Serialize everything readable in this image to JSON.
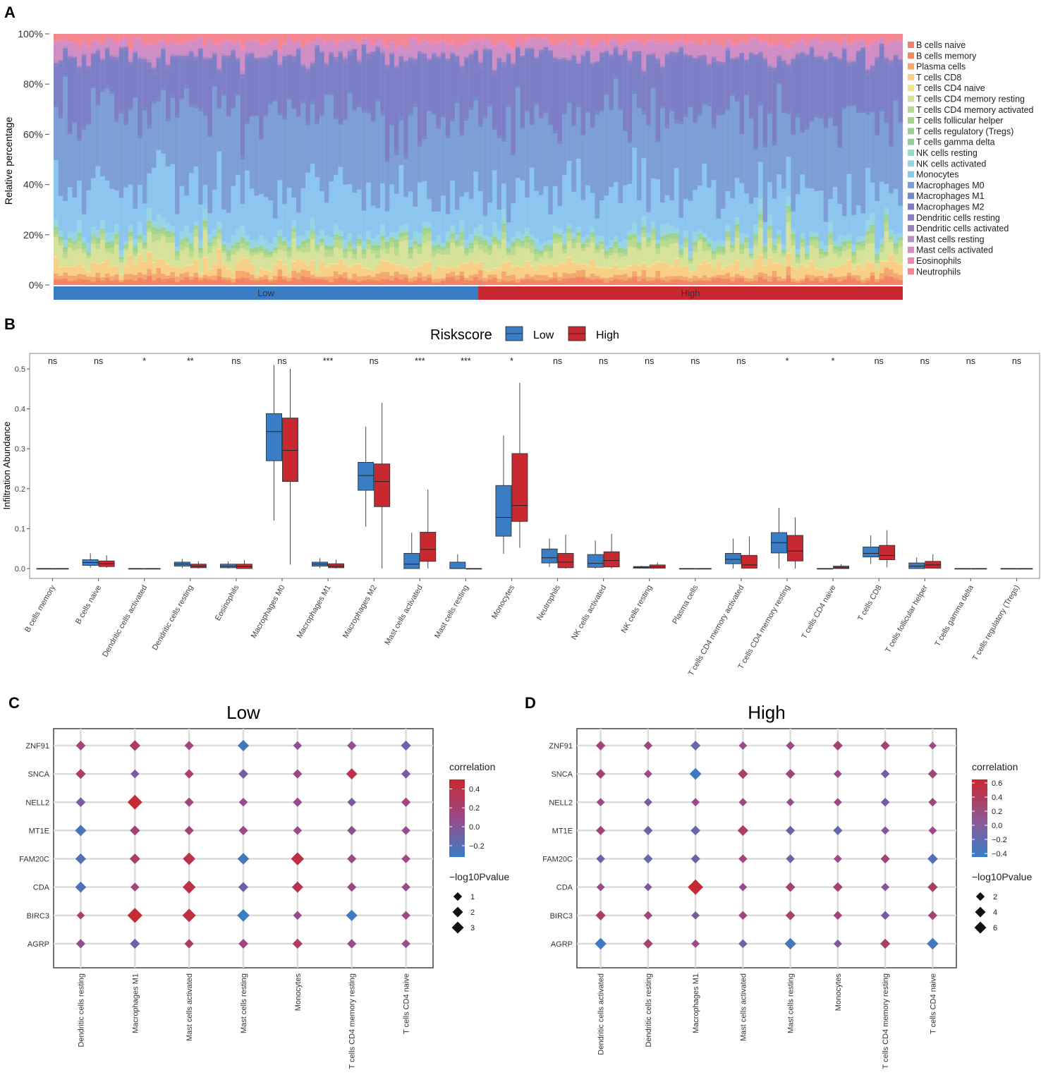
{
  "chart_data": [
    {
      "type": "stacked-bar",
      "panel_label": "A",
      "ylabel": "Relative percentage",
      "y_ticks": [
        "100%",
        "80%",
        "60%",
        "40%",
        "20%",
        "0%"
      ],
      "ylim": [
        0,
        1
      ],
      "n_samples": 182,
      "n_low": 91,
      "groups": [
        {
          "name": "Low",
          "color": "#3a7dc4"
        },
        {
          "name": "High",
          "color": "#c8282f"
        }
      ],
      "legend_position": "right",
      "series": [
        {
          "name": "B cells naive",
          "color": "#f2806a",
          "mean": 0.015
        },
        {
          "name": "B cells memory",
          "color": "#f08c5c",
          "mean": 0.008
        },
        {
          "name": "Plasma cells",
          "color": "#f4a870",
          "mean": 0.018
        },
        {
          "name": "T cells CD8",
          "color": "#f7cf86",
          "mean": 0.04
        },
        {
          "name": "T cells CD4 naive",
          "color": "#f2e38e",
          "mean": 0.004
        },
        {
          "name": "T cells CD4 memory resting",
          "color": "#d6e29a",
          "mean": 0.06
        },
        {
          "name": "T cells CD4 memory activated",
          "color": "#b9da8f",
          "mean": 0.02
        },
        {
          "name": "T cells follicular helper",
          "color": "#a3d38c",
          "mean": 0.012
        },
        {
          "name": "T cells regulatory (Tregs)",
          "color": "#9ccf8e",
          "mean": 0.004
        },
        {
          "name": "T cells gamma delta",
          "color": "#8fcf9a",
          "mean": 0.003
        },
        {
          "name": "NK cells resting",
          "color": "#9bd8c8",
          "mean": 0.008
        },
        {
          "name": "NK cells activated",
          "color": "#97d4e8",
          "mean": 0.025
        },
        {
          "name": "Monocytes",
          "color": "#8cc6ee",
          "mean": 0.17
        },
        {
          "name": "Macrophages M0",
          "color": "#7e9fd6",
          "mean": 0.32
        },
        {
          "name": "Macrophages M1",
          "color": "#7888cc",
          "mean": 0.01
        },
        {
          "name": "Macrophages M2",
          "color": "#7d7fc6",
          "mean": 0.22
        },
        {
          "name": "Dendritic cells resting",
          "color": "#8a7ec4",
          "mean": 0.01
        },
        {
          "name": "Dendritic cells activated",
          "color": "#9a7ec2",
          "mean": 0.004
        },
        {
          "name": "Mast cells resting",
          "color": "#b48ec8",
          "mean": 0.006
        },
        {
          "name": "Mast cells activated",
          "color": "#d08ec4",
          "mean": 0.05
        },
        {
          "name": "Eosinophils",
          "color": "#ef86b4",
          "mean": 0.007
        },
        {
          "name": "Neutrophils",
          "color": "#f3868e",
          "mean": 0.03
        }
      ]
    },
    {
      "type": "box",
      "panel_label": "B",
      "legend_title": "Riskscore",
      "legend_position": "top",
      "groups": [
        {
          "name": "Low",
          "color": "#3a7dc4"
        },
        {
          "name": "High",
          "color": "#c8282f"
        }
      ],
      "ylabel": "Infiltration Abundance",
      "ylim": [
        0,
        0.52
      ],
      "y_ticks": [
        0.0,
        0.1,
        0.2,
        0.3,
        0.4,
        0.5
      ],
      "y_tick_labels": [
        "0.0",
        "0.1",
        "0.2",
        "0.3",
        "0.4",
        "0.5"
      ],
      "categories": [
        "B cells memory",
        "B cells naive",
        "Dendritic cells activated",
        "Dendritic cells resting",
        "Eosinophils",
        "Macrophages M0",
        "Macrophages M1",
        "Macrophages M2",
        "Mast cells activated",
        "Mast cells resting",
        "Monocytes",
        "Neutrophils",
        "NK cells activated",
        "NK cells resting",
        "Plasma cells",
        "T cells CD4 memory activated",
        "T cells CD4 memory resting",
        "T cells CD4 naive",
        "T cells CD8",
        "T cells follicular helper",
        "T cells gamma delta",
        "T cells regulatory (Tregs)"
      ],
      "significance": [
        "ns",
        "ns",
        "*",
        "**",
        "ns",
        "ns",
        "***",
        "ns",
        "***",
        "***",
        "*",
        "ns",
        "ns",
        "ns",
        "ns",
        "ns",
        "*",
        "*",
        "ns",
        "ns",
        "ns",
        "ns"
      ],
      "low": [
        [
          0,
          0,
          0,
          0,
          0
        ],
        [
          0.002,
          0.008,
          0.015,
          0.022,
          0.038
        ],
        [
          0,
          0,
          0,
          0,
          0
        ],
        [
          0.001,
          0.006,
          0.011,
          0.016,
          0.024
        ],
        [
          0,
          0.002,
          0.006,
          0.011,
          0.018
        ],
        [
          0.12,
          0.27,
          0.343,
          0.388,
          0.51
        ],
        [
          0.001,
          0.006,
          0.011,
          0.016,
          0.026
        ],
        [
          0.105,
          0.196,
          0.233,
          0.266,
          0.355
        ],
        [
          0,
          0,
          0.011,
          0.038,
          0.09
        ],
        [
          0,
          0,
          0,
          0.016,
          0.036
        ],
        [
          0.037,
          0.081,
          0.128,
          0.208,
          0.333
        ],
        [
          0.004,
          0.014,
          0.027,
          0.049,
          0.075
        ],
        [
          0,
          0.003,
          0.013,
          0.035,
          0.07
        ],
        [
          0,
          0.001,
          0.003,
          0.005,
          0.007
        ],
        [
          0,
          0,
          0,
          0,
          0
        ],
        [
          0,
          0.012,
          0.023,
          0.038,
          0.075
        ],
        [
          0,
          0.039,
          0.065,
          0.09,
          0.152
        ],
        [
          0,
          0,
          0,
          0,
          0
        ],
        [
          0.012,
          0.029,
          0.038,
          0.054,
          0.083
        ],
        [
          0,
          0,
          0.006,
          0.014,
          0.028
        ],
        [
          0,
          0,
          0,
          0,
          0
        ],
        [
          0,
          0,
          0,
          0,
          0
        ]
      ],
      "high": [
        [
          0,
          0,
          0,
          0,
          0
        ],
        [
          0.002,
          0.005,
          0.012,
          0.019,
          0.033
        ],
        [
          0,
          0,
          0,
          0,
          0
        ],
        [
          0,
          0.002,
          0.006,
          0.011,
          0.018
        ],
        [
          0,
          0,
          0.005,
          0.011,
          0.021
        ],
        [
          0.01,
          0.218,
          0.296,
          0.377,
          0.5
        ],
        [
          0,
          0.002,
          0.006,
          0.012,
          0.022
        ],
        [
          0,
          0.155,
          0.218,
          0.262,
          0.415
        ],
        [
          0,
          0.018,
          0.048,
          0.091,
          0.198
        ],
        [
          0,
          0,
          0,
          0,
          0
        ],
        [
          0.052,
          0.118,
          0.158,
          0.288,
          0.465
        ],
        [
          0,
          0.002,
          0.016,
          0.038,
          0.085
        ],
        [
          0,
          0.004,
          0.02,
          0.042,
          0.087
        ],
        [
          0,
          0.001,
          0.004,
          0.009,
          0.015
        ],
        [
          0,
          0,
          0,
          0,
          0
        ],
        [
          0,
          0.001,
          0.009,
          0.033,
          0.08
        ],
        [
          0,
          0.019,
          0.044,
          0.083,
          0.128
        ],
        [
          0,
          0,
          0.002,
          0.006,
          0.011
        ],
        [
          0.003,
          0.022,
          0.033,
          0.058,
          0.096
        ],
        [
          0,
          0.001,
          0.009,
          0.018,
          0.036
        ],
        [
          0,
          0,
          0,
          0,
          0
        ],
        [
          0,
          0,
          0,
          0,
          0
        ]
      ]
    },
    {
      "type": "scatter",
      "panel_label": "C",
      "title": "Low",
      "rows": [
        "ZNF91",
        "SNCA",
        "NELL2",
        "MT1E",
        "FAM20C",
        "CDA",
        "BIRC3",
        "AGRP"
      ],
      "columns": [
        "Dendritic cells resting",
        "Macrophages M1",
        "Mast cells activated",
        "Mast cells resting",
        "Monocytes",
        "T cells CD4 memory resting",
        "T cells CD4 naive"
      ],
      "corr_legend": {
        "title": "correlation",
        "min": -0.32,
        "max": 0.5,
        "ticks": [
          0.4,
          0.2,
          0.0,
          -0.2
        ],
        "tick_labels": [
          "0.4",
          "0.2",
          "0.0",
          "−0.2"
        ]
      },
      "size_legend": {
        "title": "−log10Pvalue",
        "values": [
          1,
          2,
          3
        ],
        "max": 3
      },
      "correlation": [
        [
          0.18,
          0.3,
          0.15,
          -0.27,
          0.05,
          0.05,
          -0.1
        ],
        [
          0.25,
          -0.05,
          0.22,
          -0.07,
          0.12,
          0.38,
          -0.05
        ],
        [
          -0.05,
          0.48,
          0.15,
          0.06,
          0.1,
          -0.05,
          0.14
        ],
        [
          -0.25,
          0.2,
          0.18,
          0.12,
          0.1,
          0.03,
          0.06
        ],
        [
          -0.2,
          0.25,
          0.38,
          -0.26,
          0.42,
          0.1,
          0.1
        ],
        [
          -0.22,
          0.15,
          0.4,
          -0.1,
          0.35,
          0.12,
          0.08
        ],
        [
          0.2,
          0.48,
          0.42,
          -0.32,
          0.1,
          -0.3,
          0.08
        ],
        [
          0.05,
          -0.12,
          0.25,
          0.15,
          0.25,
          0.1,
          0.05
        ]
      ],
      "logp": [
        [
          0.7,
          1.0,
          0.6,
          1.2,
          0.5,
          0.6,
          0.8
        ],
        [
          0.8,
          0.5,
          0.6,
          0.7,
          0.6,
          1.1,
          0.6
        ],
        [
          0.7,
          2.6,
          0.6,
          0.5,
          0.6,
          0.5,
          0.6
        ],
        [
          1.2,
          0.8,
          0.6,
          0.6,
          0.5,
          0.6,
          0.5
        ],
        [
          1.0,
          0.9,
          1.6,
          1.3,
          1.8,
          0.6,
          0.5
        ],
        [
          1.1,
          0.5,
          1.8,
          0.8,
          1.2,
          0.6,
          0.5
        ],
        [
          0.35,
          2.7,
          2.0,
          1.6,
          0.5,
          1.2,
          0.5
        ],
        [
          0.6,
          0.8,
          0.6,
          0.7,
          0.8,
          0.6,
          0.5
        ]
      ]
    },
    {
      "type": "scatter",
      "panel_label": "D",
      "title": "High",
      "rows": [
        "ZNF91",
        "SNCA",
        "NELL2",
        "MT1E",
        "FAM20C",
        "CDA",
        "BIRC3",
        "AGRP"
      ],
      "columns": [
        "Dendritic cells activated",
        "Dendritic cells resting",
        "Macrophages M1",
        "Mast cells activated",
        "Mast cells resting",
        "Monocytes",
        "T cells CD4 memory resting",
        "T cells CD4 naive"
      ],
      "corr_legend": {
        "title": "correlation",
        "min": -0.45,
        "max": 0.65,
        "ticks": [
          0.6,
          0.4,
          0.2,
          0.0,
          -0.2,
          -0.4
        ],
        "tick_labels": [
          "0.6",
          "0.4",
          "0.2",
          "0.0",
          "−0.2",
          "−0.4"
        ]
      },
      "size_legend": {
        "title": "−log10Pvalue",
        "values": [
          2,
          4,
          6
        ],
        "max": 6
      },
      "correlation": [
        [
          0.2,
          0.15,
          -0.22,
          0.05,
          0.12,
          0.25,
          0.2,
          0.1
        ],
        [
          0.25,
          0.1,
          -0.42,
          0.3,
          0.2,
          0.1,
          -0.12,
          0.2
        ],
        [
          0.1,
          -0.1,
          0.1,
          0.12,
          0.05,
          0.1,
          -0.1,
          0.15
        ],
        [
          0.2,
          -0.15,
          -0.2,
          0.35,
          -0.15,
          -0.2,
          -0.05,
          0.1
        ],
        [
          -0.15,
          -0.2,
          -0.15,
          0.15,
          -0.1,
          0.1,
          0.2,
          -0.3
        ],
        [
          0.12,
          -0.05,
          0.62,
          0.1,
          0.25,
          0.25,
          -0.05,
          0.3
        ],
        [
          0.3,
          0.15,
          -0.1,
          0.15,
          0.25,
          0.2,
          -0.12,
          0.25
        ],
        [
          -0.42,
          0.25,
          0.1,
          -0.15,
          -0.38,
          -0.05,
          0.3,
          -0.42
        ]
      ],
      "logp": [
        [
          1.3,
          1.0,
          1.5,
          0.8,
          1.0,
          1.5,
          1.2,
          0.6
        ],
        [
          1.4,
          0.8,
          2.7,
          1.6,
          1.4,
          0.8,
          1.0,
          1.2
        ],
        [
          0.8,
          0.8,
          0.8,
          0.8,
          0.7,
          0.8,
          1.0,
          0.9
        ],
        [
          1.2,
          1.2,
          1.4,
          2.0,
          1.2,
          1.2,
          0.8,
          0.8
        ],
        [
          1.0,
          1.2,
          1.2,
          1.0,
          1.0,
          0.8,
          1.2,
          1.8
        ],
        [
          0.8,
          0.7,
          5.8,
          0.8,
          1.4,
          1.4,
          0.8,
          1.6
        ],
        [
          1.6,
          1.0,
          0.8,
          1.0,
          1.4,
          1.0,
          1.0,
          1.2
        ],
        [
          2.6,
          1.4,
          0.8,
          1.0,
          2.5,
          0.8,
          1.6,
          2.6
        ]
      ]
    }
  ]
}
